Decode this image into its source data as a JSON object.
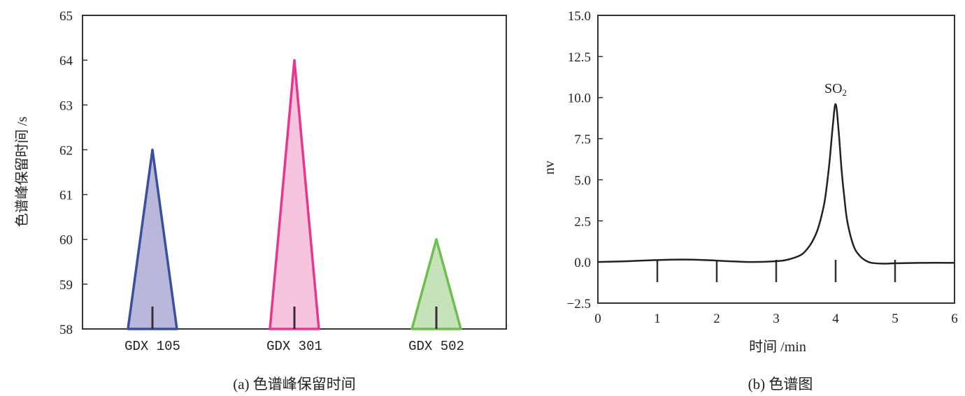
{
  "chart_data": [
    {
      "type": "triangle-bar",
      "ylabel": "色谱峰保留时间 /s",
      "caption": "(a) 色谱峰保留时间",
      "ylim": [
        58,
        65
      ],
      "yticks": [
        58,
        59,
        60,
        61,
        62,
        63,
        64,
        65
      ],
      "baseline": 58,
      "categories": [
        "GDX 105",
        "GDX 301",
        "GDX 502"
      ],
      "values": [
        62,
        64,
        60
      ],
      "colors": [
        {
          "stroke": "#3a4fa0",
          "fill": "#b9b8da"
        },
        {
          "stroke": "#e8368f",
          "fill": "#f6c4dc"
        },
        {
          "stroke": "#6cbf4e",
          "fill": "#c6e2b8"
        }
      ]
    },
    {
      "type": "line",
      "xlabel": "时间 /min",
      "ylabel": "nv",
      "caption": "(b) 色谱图",
      "xlim": [
        0,
        6
      ],
      "ylim": [
        -2.5,
        15.0
      ],
      "xticks": [
        "0",
        "1",
        "2",
        "3",
        "4",
        "5",
        "6"
      ],
      "yticks": [
        "−2.5",
        "0.0",
        "2.5",
        "5.0",
        "7.5",
        "10.0",
        "12.5",
        "15.0"
      ],
      "peak_label": {
        "main": "SO",
        "sub": "2",
        "x": 4.0,
        "y": 9.6
      },
      "x": [
        0,
        0.5,
        1.0,
        1.4,
        1.8,
        2.2,
        2.6,
        3.0,
        3.2,
        3.4,
        3.5,
        3.6,
        3.7,
        3.8,
        3.85,
        3.9,
        3.95,
        4.0,
        4.05,
        4.1,
        4.15,
        4.2,
        4.3,
        4.4,
        4.5,
        4.6,
        4.8,
        5.0,
        5.5,
        6.0
      ],
      "y": [
        0.0,
        0.05,
        0.12,
        0.15,
        0.12,
        0.05,
        0.0,
        0.05,
        0.15,
        0.4,
        0.7,
        1.2,
        2.0,
        3.4,
        4.6,
        6.2,
        8.2,
        9.6,
        8.0,
        5.6,
        3.8,
        2.4,
        1.0,
        0.4,
        0.1,
        -0.05,
        -0.1,
        -0.08,
        -0.05,
        -0.05
      ]
    }
  ]
}
